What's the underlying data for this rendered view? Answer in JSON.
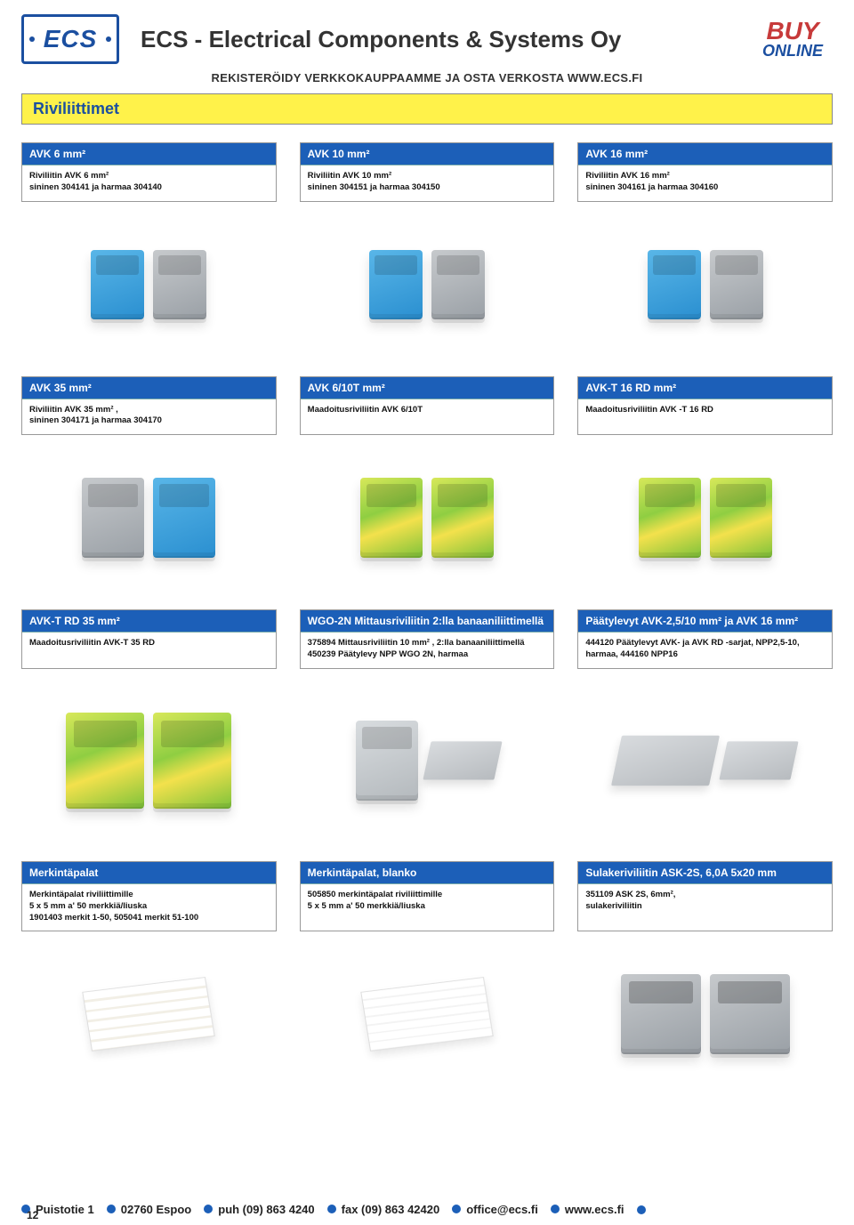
{
  "colors": {
    "brand_blue": "#1b4fa0",
    "header_blue": "#1c5fb8",
    "yellow": "#fff24a",
    "buy_red": "#c73a3a"
  },
  "header": {
    "logo": "ECS",
    "company": "ECS - Electrical Components & Systems Oy",
    "subhead": "REKISTERÖIDY VERKKOKAUPPAAMME JA OSTA VERKOSTA WWW.ECS.FI",
    "buy": "BUY",
    "online": "ONLINE"
  },
  "band": {
    "title": "Riviliittimet"
  },
  "rows": [
    {
      "cards": [
        {
          "title": "AVK 6 mm²",
          "lines": [
            "Riviliitin AVK 6 mm²",
            "sininen 304141 ja harmaa 304140"
          ]
        },
        {
          "title": "AVK 10 mm²",
          "lines": [
            "Riviliitin AVK 10 mm²",
            "sininen 304151 ja harmaa 304150"
          ]
        },
        {
          "title": "AVK 16 mm²",
          "lines": [
            "Riviliitin AVK 16  mm²",
            "sininen 304161 ja harmaa  304160"
          ]
        }
      ],
      "image_hint": "blue_grey_pair"
    },
    {
      "cards": [
        {
          "title": "AVK 35 mm²",
          "lines": [
            "Riviliitin AVK 35 mm² ,",
            "sininen 304171 ja harmaa  304170"
          ]
        },
        {
          "title": "AVK 6/10T mm²",
          "lines": [
            "Maadoitusriviliitin AVK 6/10T"
          ]
        },
        {
          "title": "AVK-T 16 RD mm²",
          "lines": [
            "Maadoitusriviliitin AVK -T 16 RD"
          ]
        }
      ],
      "image_hint": "mixed_earth"
    },
    {
      "cards": [
        {
          "title": "AVK-T RD 35 mm²",
          "lines": [
            "Maadoitusriviliitin AVK-T 35 RD"
          ]
        },
        {
          "title": "WGO-2N Mittausriviliitin 2:lla banaaniliittimellä",
          "lines": [
            "375894 Mittausriviliitin 10 mm² , 2:lla banaaniliittimellä",
            "450239 Päätylevy NPP WGO 2N, harmaa"
          ]
        },
        {
          "title": "Päätylevyt AVK-2,5/10 mm² ja AVK 16 mm²",
          "lines": [
            "444120 Päätylevyt AVK- ja AVK RD -sarjat, NPP2,5-10,",
            "harmaa,  444160 NPP16"
          ]
        }
      ],
      "image_hint": "earth_meas_endplates"
    },
    {
      "cards": [
        {
          "title": "Merkintäpalat",
          "lines": [
            "Merkintäpalat riviliittimille",
            "5 x 5 mm a' 50 merkkiä/liuska",
            "1901403 merkit 1-50, 505041 merkit 51-100"
          ]
        },
        {
          "title": "Merkintäpalat, blanko",
          "lines": [
            "505850 merkintäpalat riviliittimille",
            "5 x 5 mm a' 50 merkkiä/liuska"
          ]
        },
        {
          "title": "Sulakeriviliitin ASK-2S, 6,0A 5x20 mm",
          "lines": [
            "351109 ASK 2S, 6mm²,",
            "sulakeriviliitin"
          ]
        }
      ],
      "image_hint": "labels_fuse"
    }
  ],
  "footer": {
    "items": [
      "Puistotie 1",
      "02760 Espoo",
      "puh (09) 863 4240",
      "fax (09) 863 42420",
      "office@ecs.fi",
      "www.ecs.fi"
    ],
    "page_number": "12"
  }
}
